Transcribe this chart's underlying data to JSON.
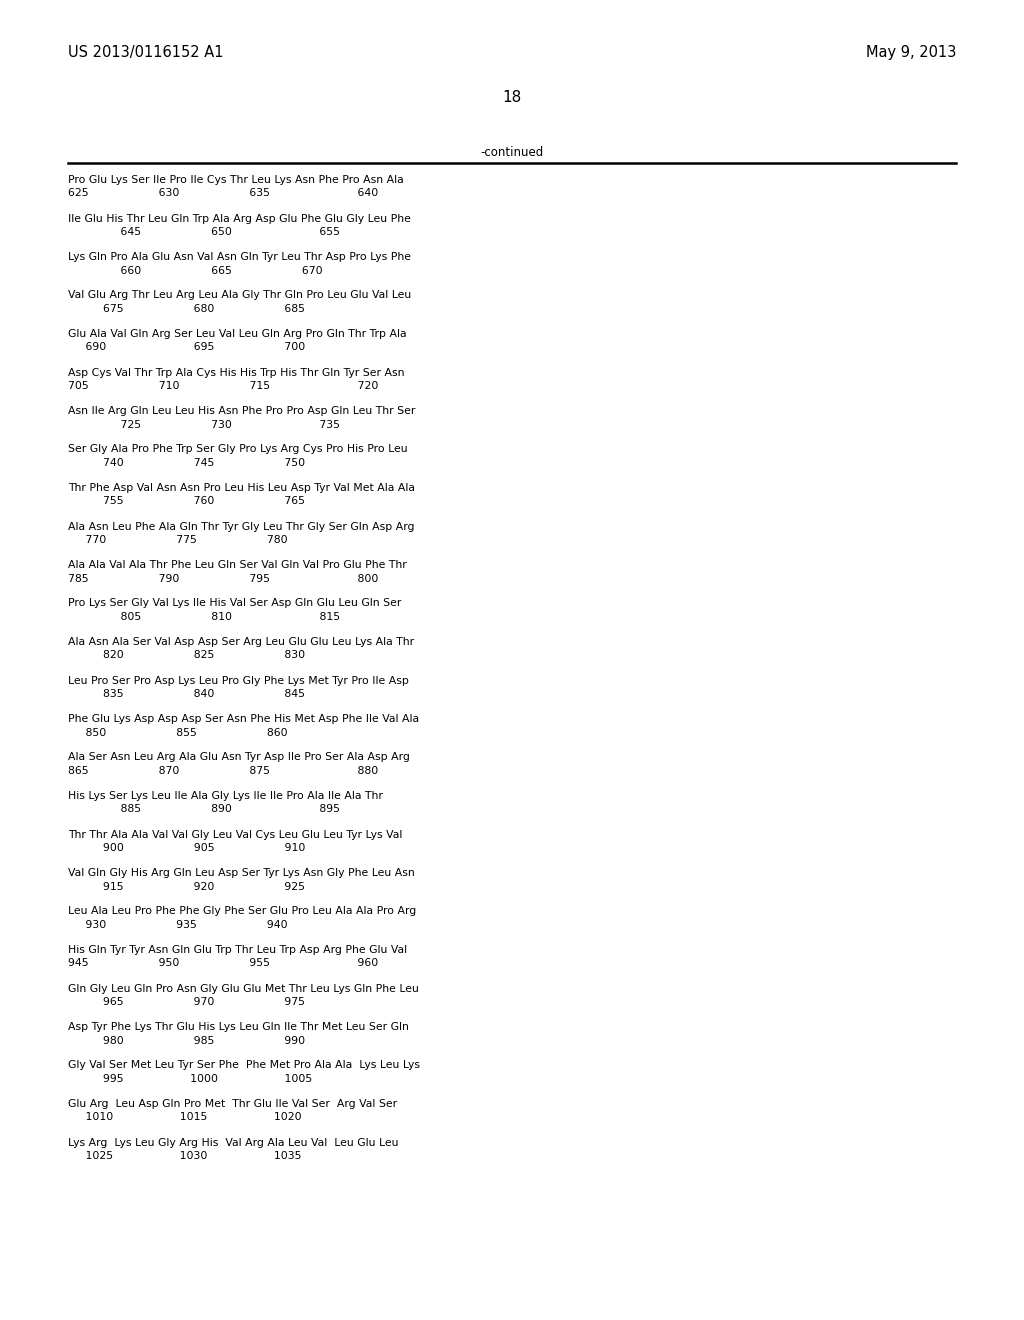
{
  "header_left": "US 2013/0116152 A1",
  "header_right": "May 9, 2013",
  "page_number": "18",
  "continued_label": "-continued",
  "background_color": "#ffffff",
  "text_color": "#000000",
  "content": [
    [
      "Pro Glu Lys Ser Ile Pro Ile Cys Thr Leu Lys Asn Phe Pro Asn Ala",
      "625                    630                    635                         640"
    ],
    [
      "Ile Glu His Thr Leu Gln Trp Ala Arg Asp Glu Phe Glu Gly Leu Phe",
      "               645                    650                         655"
    ],
    [
      "Lys Gln Pro Ala Glu Asn Val Asn Gln Tyr Leu Thr Asp Pro Lys Phe",
      "               660                    665                    670"
    ],
    [
      "Val Glu Arg Thr Leu Arg Leu Ala Gly Thr Gln Pro Leu Glu Val Leu",
      "          675                    680                    685"
    ],
    [
      "Glu Ala Val Gln Arg Ser Leu Val Leu Gln Arg Pro Gln Thr Trp Ala",
      "     690                         695                    700"
    ],
    [
      "Asp Cys Val Thr Trp Ala Cys His His Trp His Thr Gln Tyr Ser Asn",
      "705                    710                    715                         720"
    ],
    [
      "Asn Ile Arg Gln Leu Leu His Asn Phe Pro Pro Asp Gln Leu Thr Ser",
      "               725                    730                         735"
    ],
    [
      "Ser Gly Ala Pro Phe Trp Ser Gly Pro Lys Arg Cys Pro His Pro Leu",
      "          740                    745                    750"
    ],
    [
      "Thr Phe Asp Val Asn Asn Pro Leu His Leu Asp Tyr Val Met Ala Ala",
      "          755                    760                    765"
    ],
    [
      "Ala Asn Leu Phe Ala Gln Thr Tyr Gly Leu Thr Gly Ser Gln Asp Arg",
      "     770                    775                    780"
    ],
    [
      "Ala Ala Val Ala Thr Phe Leu Gln Ser Val Gln Val Pro Glu Phe Thr",
      "785                    790                    795                         800"
    ],
    [
      "Pro Lys Ser Gly Val Lys Ile His Val Ser Asp Gln Glu Leu Gln Ser",
      "               805                    810                         815"
    ],
    [
      "Ala Asn Ala Ser Val Asp Asp Ser Arg Leu Glu Glu Leu Lys Ala Thr",
      "          820                    825                    830"
    ],
    [
      "Leu Pro Ser Pro Asp Lys Leu Pro Gly Phe Lys Met Tyr Pro Ile Asp",
      "          835                    840                    845"
    ],
    [
      "Phe Glu Lys Asp Asp Asp Ser Asn Phe His Met Asp Phe Ile Val Ala",
      "     850                    855                    860"
    ],
    [
      "Ala Ser Asn Leu Arg Ala Glu Asn Tyr Asp Ile Pro Ser Ala Asp Arg",
      "865                    870                    875                         880"
    ],
    [
      "His Lys Ser Lys Leu Ile Ala Gly Lys Ile Ile Pro Ala Ile Ala Thr",
      "               885                    890                         895"
    ],
    [
      "Thr Thr Ala Ala Val Val Gly Leu Val Cys Leu Glu Leu Tyr Lys Val",
      "          900                    905                    910"
    ],
    [
      "Val Gln Gly His Arg Gln Leu Asp Ser Tyr Lys Asn Gly Phe Leu Asn",
      "          915                    920                    925"
    ],
    [
      "Leu Ala Leu Pro Phe Phe Gly Phe Ser Glu Pro Leu Ala Ala Pro Arg",
      "     930                    935                    940"
    ],
    [
      "His Gln Tyr Tyr Asn Gln Glu Trp Thr Leu Trp Asp Arg Phe Glu Val",
      "945                    950                    955                         960"
    ],
    [
      "Gln Gly Leu Gln Pro Asn Gly Glu Glu Met Thr Leu Lys Gln Phe Leu",
      "          965                    970                    975"
    ],
    [
      "Asp Tyr Phe Lys Thr Glu His Lys Leu Gln Ile Thr Met Leu Ser Gln",
      "          980                    985                    990"
    ],
    [
      "Gly Val Ser Met Leu Tyr Ser Phe  Phe Met Pro Ala Ala  Lys Leu Lys",
      "          995                   1000                   1005"
    ],
    [
      "Glu Arg  Leu Asp Gln Pro Met  Thr Glu Ile Val Ser  Arg Val Ser",
      "     1010                   1015                   1020"
    ],
    [
      "Lys Arg  Lys Leu Gly Arg His  Val Arg Ala Leu Val  Leu Glu Leu",
      "     1025                   1030                   1035"
    ]
  ]
}
